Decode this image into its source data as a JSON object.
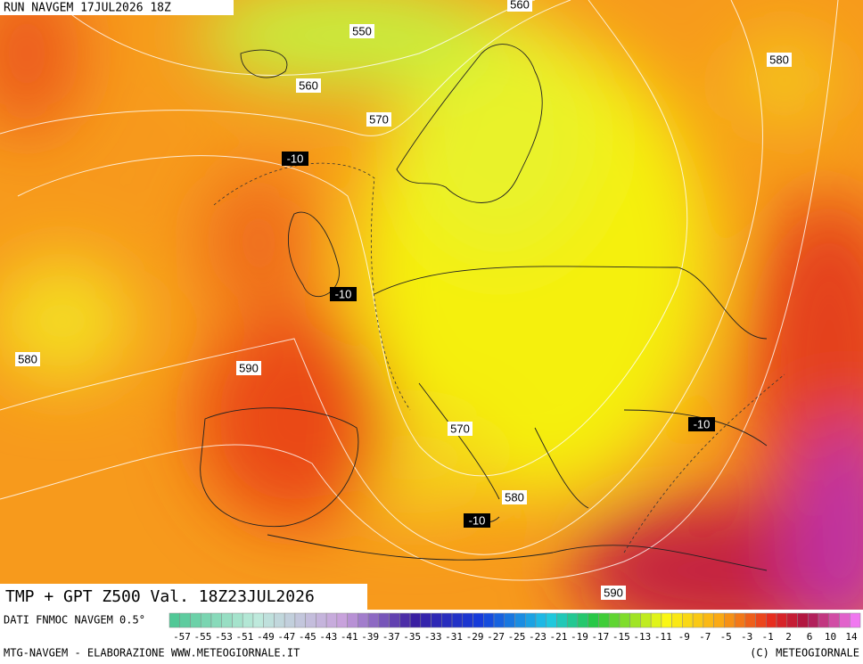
{
  "header": {
    "run": "RUN NAVGEM 17JUL2026 18Z"
  },
  "map": {
    "contour_labels": [
      "560",
      "550",
      "560",
      "570",
      "580",
      "-10",
      "-10",
      "580",
      "590",
      "570",
      "-10",
      "580",
      "-10",
      "590"
    ]
  },
  "footer": {
    "title": "TMP + GPT Z500 Val. 18Z23JUL2026",
    "source": "DATI FNMOC NAVGEM 0.5°",
    "scale_labels": [
      "-57",
      "-55",
      "-53",
      "-51",
      "-49",
      "-47",
      "-45",
      "-43",
      "-41",
      "-39",
      "-37",
      "-35",
      "-33",
      "-31",
      "-29",
      "-27",
      "-25",
      "-23",
      "-21",
      "-19",
      "-17",
      "-15",
      "-13",
      "-11",
      "-9",
      "-7",
      "-5",
      "-3",
      "-1",
      "2",
      "6",
      "10",
      "14"
    ],
    "credit": "MTG-NAVGEM - ELABORAZIONE WWW.METEOGIORNALE.IT",
    "copyright": "(C) METEOGIORNALE"
  }
}
